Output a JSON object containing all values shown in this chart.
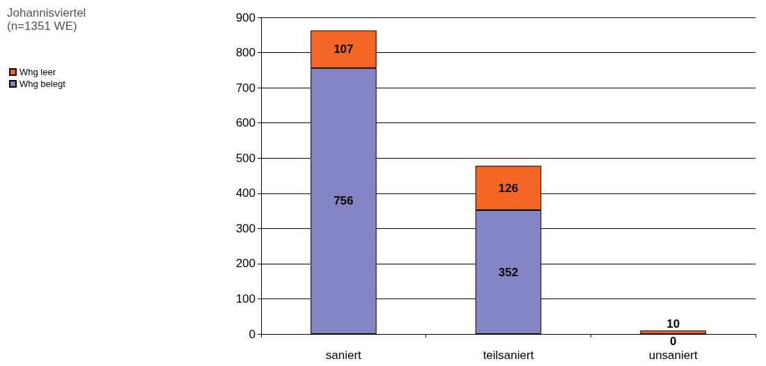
{
  "chart_data": {
    "type": "bar",
    "title": "Johannisviertel",
    "subtitle": "(n=1351 WE)",
    "categories": [
      "saniert",
      "teilsaniert",
      "unsaniert"
    ],
    "series": [
      {
        "name": "Whg belegt",
        "color": "#8585c4",
        "values": [
          756,
          352,
          0
        ]
      },
      {
        "name": "Whg leer",
        "color": "#f26522",
        "values": [
          107,
          126,
          10
        ]
      }
    ],
    "stacked": true,
    "data_labels": true,
    "ylim": [
      0,
      900
    ],
    "yticks": [
      0,
      100,
      200,
      300,
      400,
      500,
      600,
      700,
      800,
      900
    ],
    "grid": "y",
    "legend": "left"
  }
}
